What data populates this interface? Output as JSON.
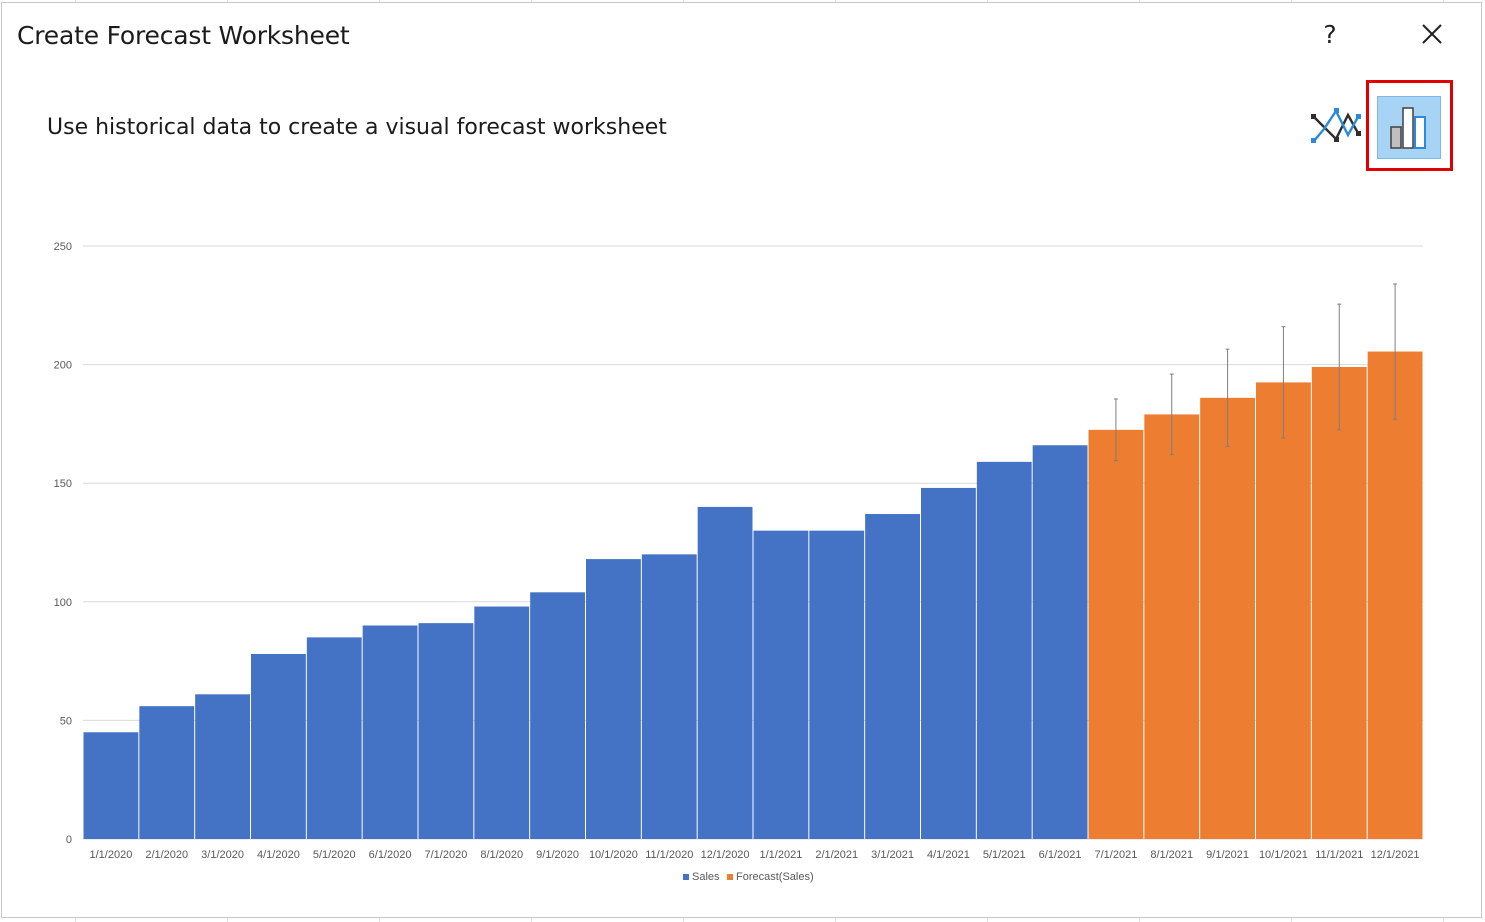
{
  "dialog": {
    "title": "Create Forecast Worksheet",
    "help_label": "?",
    "subtitle": "Use historical data to create a visual forecast worksheet"
  },
  "toolbar": {
    "line_chart_icon": "line-chart-icon",
    "column_chart_icon": "column-chart-icon",
    "selected": "column"
  },
  "colors": {
    "sales": "#4472c4",
    "forecast": "#ed7d31",
    "selected_fill": "#a7d3f5",
    "highlight_border": "#e00000"
  },
  "chart_data": {
    "type": "bar",
    "categories": [
      "1/1/2020",
      "2/1/2020",
      "3/1/2020",
      "4/1/2020",
      "5/1/2020",
      "6/1/2020",
      "7/1/2020",
      "8/1/2020",
      "9/1/2020",
      "10/1/2020",
      "11/1/2020",
      "12/1/2020",
      "1/1/2021",
      "2/1/2021",
      "3/1/2021",
      "4/1/2021",
      "5/1/2021",
      "6/1/2021",
      "7/1/2021",
      "8/1/2021",
      "9/1/2021",
      "10/1/2021",
      "11/1/2021",
      "12/1/2021"
    ],
    "series": [
      {
        "name": "Sales",
        "values": [
          45,
          56,
          61,
          78,
          85,
          90,
          91,
          98,
          104,
          118,
          120,
          140,
          130,
          130,
          137,
          148,
          159,
          166,
          null,
          null,
          null,
          null,
          null,
          null
        ]
      },
      {
        "name": "Forecast(Sales)",
        "values": [
          null,
          null,
          null,
          null,
          null,
          null,
          null,
          null,
          null,
          null,
          null,
          null,
          null,
          null,
          null,
          null,
          null,
          null,
          172.5,
          179,
          186,
          192.5,
          199,
          205.5
        ]
      }
    ],
    "forecast_bounds": {
      "lower": [
        159.5,
        162,
        165.5,
        169,
        172.5,
        177
      ],
      "upper": [
        185.5,
        196,
        206.5,
        216,
        225.5,
        234
      ]
    },
    "yticks": [
      0,
      50,
      100,
      150,
      200,
      250
    ],
    "ylim": [
      0,
      250
    ],
    "grid": true,
    "legend_position": "bottom"
  }
}
